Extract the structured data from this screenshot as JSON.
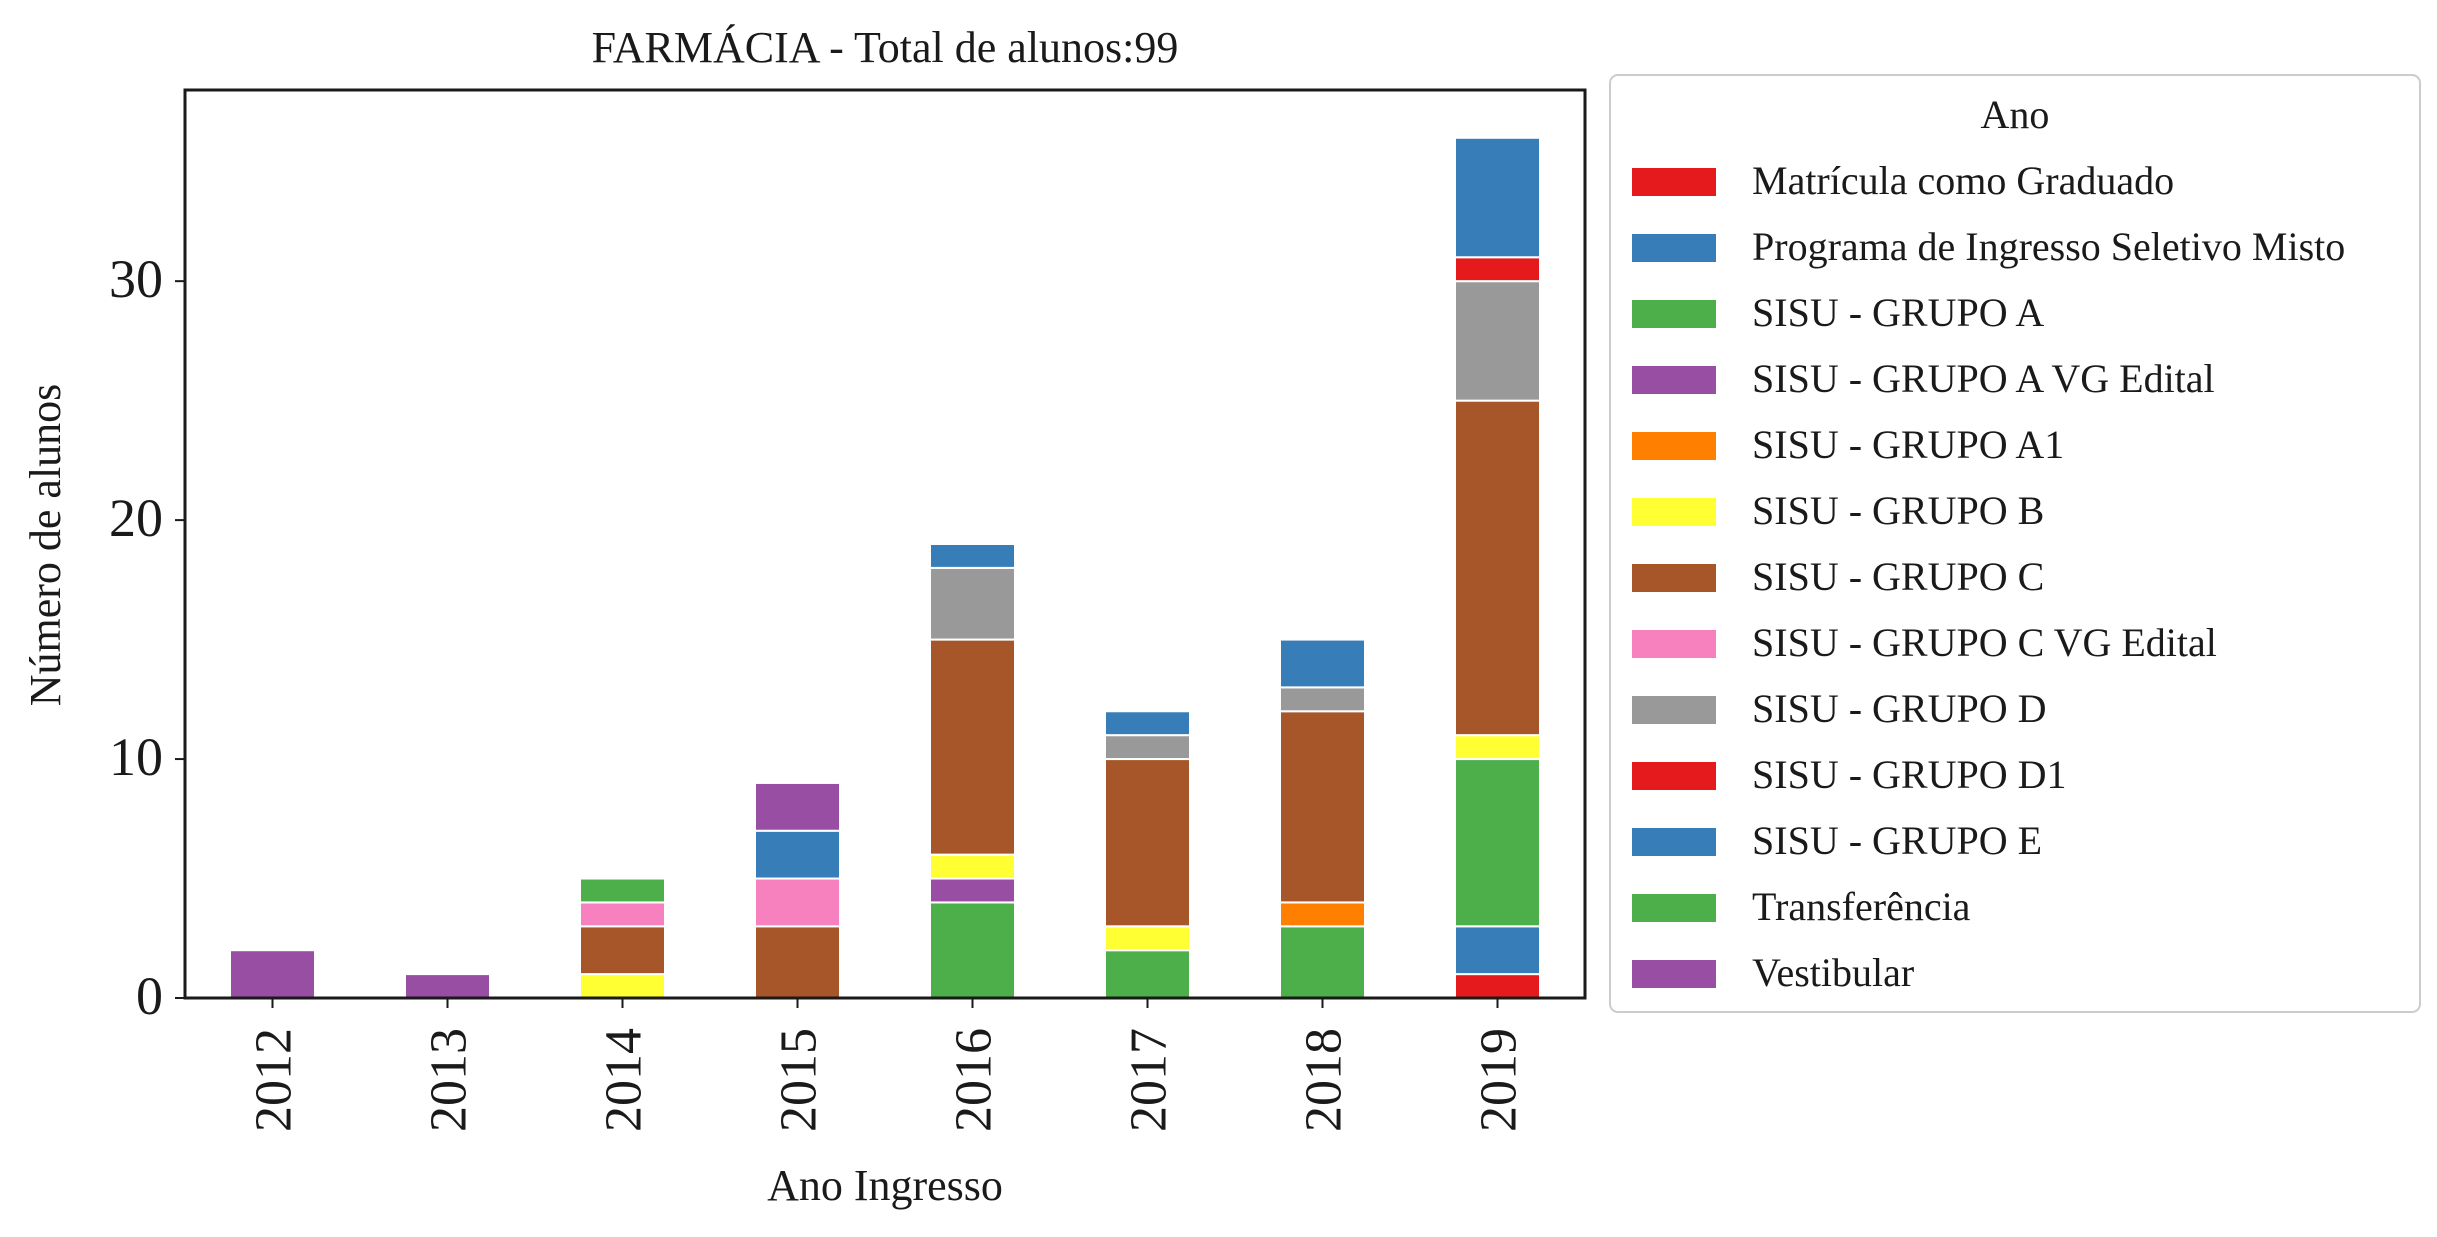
{
  "chart_data": {
    "type": "bar",
    "stacked": true,
    "title": "FARMÁCIA - Total de alunos:99",
    "xlabel": "Ano Ingresso",
    "ylabel": "Número de alunos",
    "ylim": [
      0,
      38
    ],
    "yticks": [
      0,
      10,
      20,
      30
    ],
    "categories": [
      "2012",
      "2013",
      "2014",
      "2015",
      "2016",
      "2017",
      "2018",
      "2019"
    ],
    "legend": {
      "title": "Ano",
      "placement": "outside-right"
    },
    "grid": false,
    "series": [
      {
        "name": "Matrícula como Graduado",
        "color": "#e41a1c",
        "values": [
          0,
          0,
          0,
          0,
          0,
          0,
          0,
          1
        ]
      },
      {
        "name": "Programa de Ingresso Seletivo Misto",
        "color": "#377eb8",
        "values": [
          0,
          0,
          0,
          0,
          0,
          0,
          0,
          2
        ]
      },
      {
        "name": "SISU - GRUPO A",
        "color": "#4daf4a",
        "values": [
          0,
          0,
          0,
          0,
          4,
          2,
          3,
          7
        ]
      },
      {
        "name": "SISU - GRUPO A VG Edital",
        "color": "#984ea3",
        "values": [
          0,
          0,
          0,
          0,
          1,
          0,
          0,
          0
        ]
      },
      {
        "name": "SISU - GRUPO A1",
        "color": "#ff7f00",
        "values": [
          0,
          0,
          0,
          0,
          0,
          0,
          1,
          0
        ]
      },
      {
        "name": "SISU - GRUPO B",
        "color": "#ffff33",
        "values": [
          0,
          0,
          1,
          0,
          1,
          1,
          0,
          1
        ]
      },
      {
        "name": "SISU - GRUPO C",
        "color": "#a65628",
        "values": [
          0,
          0,
          2,
          3,
          9,
          7,
          8,
          14
        ]
      },
      {
        "name": "SISU - GRUPO C VG Edital",
        "color": "#f781bf",
        "values": [
          0,
          0,
          1,
          2,
          0,
          0,
          0,
          0
        ]
      },
      {
        "name": "SISU - GRUPO D",
        "color": "#999999",
        "values": [
          0,
          0,
          0,
          0,
          3,
          1,
          1,
          5
        ]
      },
      {
        "name": "SISU - GRUPO D1",
        "color": "#e41a1c",
        "values": [
          0,
          0,
          0,
          0,
          0,
          0,
          0,
          1
        ]
      },
      {
        "name": "SISU - GRUPO E",
        "color": "#377eb8",
        "values": [
          0,
          0,
          0,
          2,
          1,
          1,
          2,
          5
        ]
      },
      {
        "name": "Transferência",
        "color": "#4daf4a",
        "values": [
          0,
          0,
          1,
          0,
          0,
          0,
          0,
          0
        ]
      },
      {
        "name": "Vestibular",
        "color": "#984ea3",
        "values": [
          2,
          1,
          0,
          2,
          0,
          0,
          0,
          0
        ]
      }
    ]
  }
}
